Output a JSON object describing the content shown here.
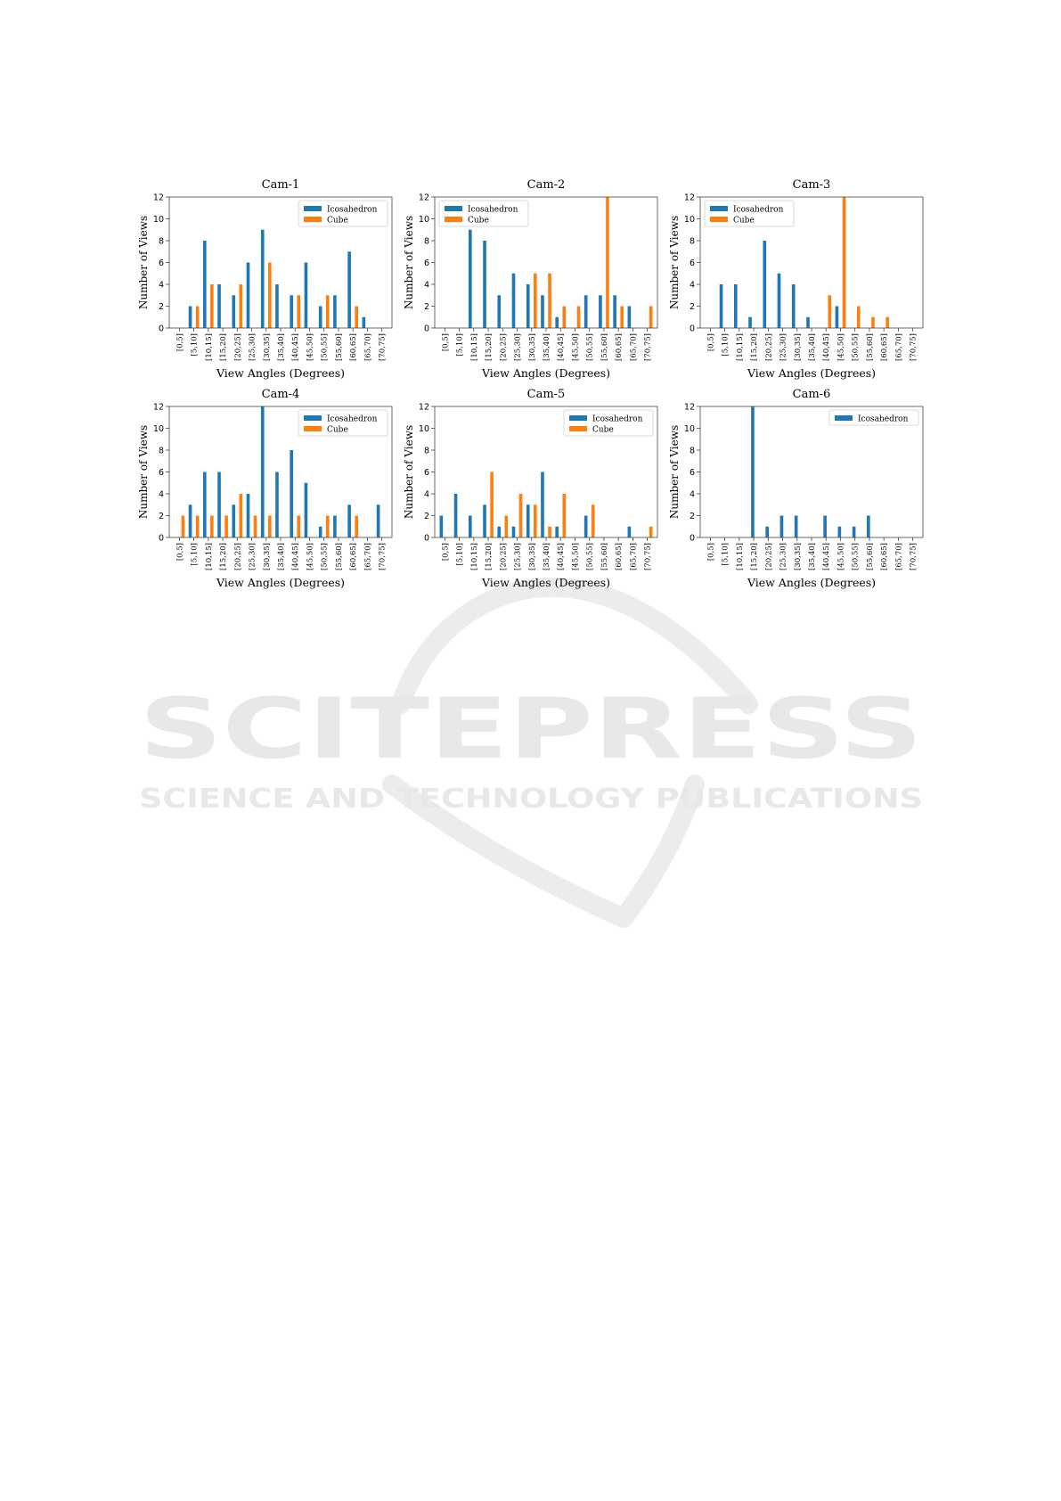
{
  "page": {
    "watermark": {
      "title": "SCITEPRESS",
      "subtitle": "SCIENCE AND TECHNOLOGY PUBLICATIONS"
    }
  },
  "colors": {
    "icosahedron": "#1f77b4",
    "cube": "#ff7f0e"
  },
  "chart_data": [
    {
      "type": "bar",
      "title": "Cam-1",
      "xlabel": "View Angles (Degrees)",
      "ylabel": "Number of Views",
      "ylim": [
        0,
        12
      ],
      "yticks": [
        0,
        2,
        4,
        6,
        8,
        10,
        12
      ],
      "legend_position": "top-right",
      "categories": [
        "[0,5]",
        "[5,10]",
        "[10,15]",
        "[15,20]",
        "[20,25]",
        "[25,30]",
        "[30,35]",
        "[35,40]",
        "[40,45]",
        "[45,50]",
        "[50,55]",
        "[55,60]",
        "[60,65]",
        "[65,70]",
        "[70,75]"
      ],
      "series": [
        {
          "name": "Icosahedron",
          "values": [
            0,
            2,
            8,
            4,
            3,
            6,
            9,
            4,
            3,
            6,
            2,
            3,
            7,
            1,
            0
          ]
        },
        {
          "name": "Cube",
          "values": [
            0,
            2,
            4,
            0,
            4,
            0,
            6,
            0,
            3,
            0,
            3,
            0,
            2,
            0,
            0
          ]
        }
      ]
    },
    {
      "type": "bar",
      "title": "Cam-2",
      "xlabel": "View Angles (Degrees)",
      "ylabel": "Number of Views",
      "ylim": [
        0,
        12
      ],
      "yticks": [
        0,
        2,
        4,
        6,
        8,
        10,
        12
      ],
      "legend_position": "top-left",
      "categories": [
        "[0,5]",
        "[5,10]",
        "[10,15]",
        "[15,20]",
        "[20,25]",
        "[25,30]",
        "[30,35]",
        "[35,40]",
        "[40,45]",
        "[45,50]",
        "[50,55]",
        "[55,60]",
        "[60,65]",
        "[65,70]",
        "[70,75]"
      ],
      "series": [
        {
          "name": "Icosahedron",
          "values": [
            0,
            0,
            9,
            8,
            3,
            5,
            4,
            3,
            1,
            0,
            3,
            3,
            3,
            2,
            0
          ]
        },
        {
          "name": "Cube",
          "values": [
            0,
            0,
            0,
            0,
            0,
            0,
            5,
            5,
            2,
            2,
            0,
            12,
            2,
            0,
            2
          ]
        }
      ]
    },
    {
      "type": "bar",
      "title": "Cam-3",
      "xlabel": "View Angles (Degrees)",
      "ylabel": "Number of Views",
      "ylim": [
        0,
        12
      ],
      "yticks": [
        0,
        2,
        4,
        6,
        8,
        10,
        12
      ],
      "legend_position": "top-left",
      "categories": [
        "[0,5]",
        "[5,10]",
        "[10,15]",
        "[15,20]",
        "[20,25]",
        "[25,30]",
        "[30,35]",
        "[35,40]",
        "[40,45]",
        "[45,50]",
        "[50,55]",
        "[55,60]",
        "[60,65]",
        "[65,70]",
        "[70,75]"
      ],
      "series": [
        {
          "name": "Icosahedron",
          "values": [
            0,
            4,
            4,
            1,
            8,
            5,
            4,
            1,
            0,
            2,
            0,
            0,
            0,
            0,
            0
          ]
        },
        {
          "name": "Cube",
          "values": [
            0,
            0,
            0,
            0,
            0,
            0,
            0,
            0,
            3,
            12,
            2,
            1,
            1,
            0,
            0
          ]
        }
      ]
    },
    {
      "type": "bar",
      "title": "Cam-4",
      "xlabel": "View Angles (Degrees)",
      "ylabel": "Number of Views",
      "ylim": [
        0,
        12
      ],
      "yticks": [
        0,
        2,
        4,
        6,
        8,
        10,
        12
      ],
      "legend_position": "top-right",
      "categories": [
        "[0,5]",
        "[5,10]",
        "[10,15]",
        "[15,20]",
        "[20,25]",
        "[25,30]",
        "[30,35]",
        "[35,40]",
        "[40,45]",
        "[45,50]",
        "[50,55]",
        "[55,60]",
        "[60,65]",
        "[65,70]",
        "[70,75]"
      ],
      "series": [
        {
          "name": "Icosahedron",
          "values": [
            0,
            3,
            6,
            6,
            3,
            4,
            12,
            6,
            8,
            5,
            1,
            2,
            3,
            0,
            3
          ]
        },
        {
          "name": "Cube",
          "values": [
            2,
            2,
            2,
            2,
            4,
            2,
            2,
            0,
            2,
            0,
            2,
            0,
            2,
            0,
            0
          ]
        }
      ]
    },
    {
      "type": "bar",
      "title": "Cam-5",
      "xlabel": "View Angles (Degrees)",
      "ylabel": "Number of Views",
      "ylim": [
        0,
        12
      ],
      "yticks": [
        0,
        2,
        4,
        6,
        8,
        10,
        12
      ],
      "legend_position": "top-right",
      "categories": [
        "[0,5]",
        "[5,10]",
        "[10,15]",
        "[15,20]",
        "[20,25]",
        "[25,30]",
        "[30,35]",
        "[35,40]",
        "[40,45]",
        "[45,50]",
        "[50,55]",
        "[55,60]",
        "[60,65]",
        "[65,70]",
        "[70,75]"
      ],
      "series": [
        {
          "name": "Icosahedron",
          "values": [
            2,
            4,
            2,
            3,
            1,
            1,
            3,
            6,
            1,
            0,
            2,
            0,
            0,
            1,
            0
          ]
        },
        {
          "name": "Cube",
          "values": [
            0,
            0,
            0,
            6,
            2,
            4,
            3,
            1,
            4,
            0,
            3,
            0,
            0,
            0,
            1
          ]
        }
      ]
    },
    {
      "type": "bar",
      "title": "Cam-6",
      "xlabel": "View Angles (Degrees)",
      "ylabel": "Number of Views",
      "ylim": [
        0,
        12
      ],
      "yticks": [
        0,
        2,
        4,
        6,
        8,
        10,
        12
      ],
      "legend_position": "top-right",
      "categories": [
        "[0,5]",
        "[5,10]",
        "[10,15]",
        "[15,20]",
        "[20,25]",
        "[25,30]",
        "[30,35]",
        "[35,40]",
        "[40,45]",
        "[45,50]",
        "[50,55]",
        "[55,60]",
        "[60,65]",
        "[65,70]",
        "[70,75]"
      ],
      "series": [
        {
          "name": "Icosahedron",
          "values": [
            0,
            0,
            0,
            12,
            1,
            2,
            2,
            0,
            2,
            1,
            1,
            2,
            0,
            0,
            0
          ]
        }
      ]
    }
  ]
}
